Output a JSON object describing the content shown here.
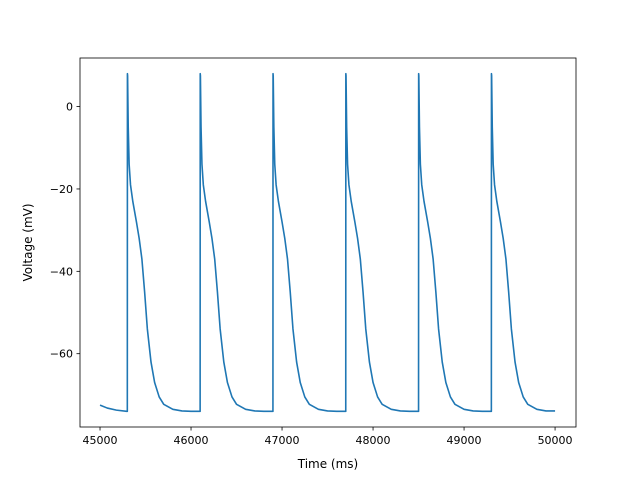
{
  "chart_data": {
    "type": "line",
    "title": "",
    "xlabel": "Time (ms)",
    "ylabel": "Voltage (mV)",
    "xlim": [
      44780,
      50230
    ],
    "ylim": [
      -77.8,
      11.8
    ],
    "xticks": [
      {
        "value": 45000,
        "label": "45000"
      },
      {
        "value": 46000,
        "label": "46000"
      },
      {
        "value": 47000,
        "label": "47000"
      },
      {
        "value": 48000,
        "label": "48000"
      },
      {
        "value": 49000,
        "label": "49000"
      },
      {
        "value": 50000,
        "label": "50000"
      }
    ],
    "yticks": [
      {
        "value": 0,
        "label": "0"
      },
      {
        "value": -20,
        "label": "−20"
      },
      {
        "value": -40,
        "label": "−40"
      },
      {
        "value": -60,
        "label": "−60"
      }
    ],
    "grid": false,
    "legend": "none",
    "line_color": "#1f77b4",
    "series": [
      {
        "name": "",
        "x": [
          45000,
          45080,
          45180,
          45292,
          45300,
          45301,
          45303,
          45310,
          45320,
          45335,
          45360,
          45400,
          45430,
          45460,
          45490,
          45520,
          45560,
          45600,
          45650,
          45700,
          45800,
          45900,
          46000,
          46092,
          46100,
          46101,
          46103,
          46110,
          46120,
          46135,
          46160,
          46200,
          46230,
          46260,
          46290,
          46320,
          46360,
          46400,
          46450,
          46500,
          46600,
          46700,
          46800,
          46892,
          46900,
          46901,
          46903,
          46910,
          46920,
          46935,
          46960,
          47000,
          47030,
          47060,
          47090,
          47120,
          47160,
          47200,
          47250,
          47300,
          47400,
          47500,
          47600,
          47692,
          47700,
          47701,
          47703,
          47710,
          47720,
          47735,
          47760,
          47800,
          47830,
          47860,
          47890,
          47920,
          47960,
          48000,
          48050,
          48100,
          48200,
          48300,
          48400,
          48492,
          48500,
          48501,
          48503,
          48510,
          48520,
          48535,
          48560,
          48600,
          48630,
          48660,
          48690,
          48720,
          48760,
          48800,
          48850,
          48900,
          49000,
          49100,
          49200,
          49292,
          49300,
          49301,
          49303,
          49310,
          49320,
          49335,
          49360,
          49400,
          49430,
          49460,
          49490,
          49520,
          49560,
          49600,
          49650,
          49700,
          49800,
          49900,
          50000
        ],
        "y": [
          -72.5,
          -73.2,
          -73.7,
          -74.0,
          -74.0,
          8.0,
          7.5,
          -5.0,
          -14.0,
          -19.0,
          -23.0,
          -28.0,
          -32.0,
          -37.0,
          -45.0,
          -54.0,
          -62.0,
          -67.0,
          -70.5,
          -72.3,
          -73.5,
          -73.9,
          -74.0,
          -74.0,
          -74.0,
          8.0,
          7.5,
          -5.0,
          -14.0,
          -19.0,
          -23.0,
          -28.0,
          -32.0,
          -37.0,
          -45.0,
          -54.0,
          -62.0,
          -67.0,
          -70.5,
          -72.3,
          -73.5,
          -73.9,
          -74.0,
          -74.0,
          -74.0,
          8.0,
          7.5,
          -5.0,
          -14.0,
          -19.0,
          -23.0,
          -28.0,
          -32.0,
          -37.0,
          -45.0,
          -54.0,
          -62.0,
          -67.0,
          -70.5,
          -72.3,
          -73.5,
          -73.9,
          -74.0,
          -74.0,
          -74.0,
          8.0,
          7.5,
          -5.0,
          -14.0,
          -19.0,
          -23.0,
          -28.0,
          -32.0,
          -37.0,
          -45.0,
          -54.0,
          -62.0,
          -67.0,
          -70.5,
          -72.3,
          -73.5,
          -73.9,
          -74.0,
          -74.0,
          -74.0,
          8.0,
          7.5,
          -5.0,
          -14.0,
          -19.0,
          -23.0,
          -28.0,
          -32.0,
          -37.0,
          -45.0,
          -54.0,
          -62.0,
          -67.0,
          -70.5,
          -72.3,
          -73.5,
          -73.9,
          -74.0,
          -74.0,
          -74.0,
          8.0,
          7.5,
          -5.0,
          -14.0,
          -19.0,
          -23.0,
          -28.0,
          -32.0,
          -37.0,
          -45.0,
          -54.0,
          -62.0,
          -67.0,
          -70.5,
          -72.3,
          -73.5,
          -73.9,
          -73.9
        ]
      }
    ]
  }
}
